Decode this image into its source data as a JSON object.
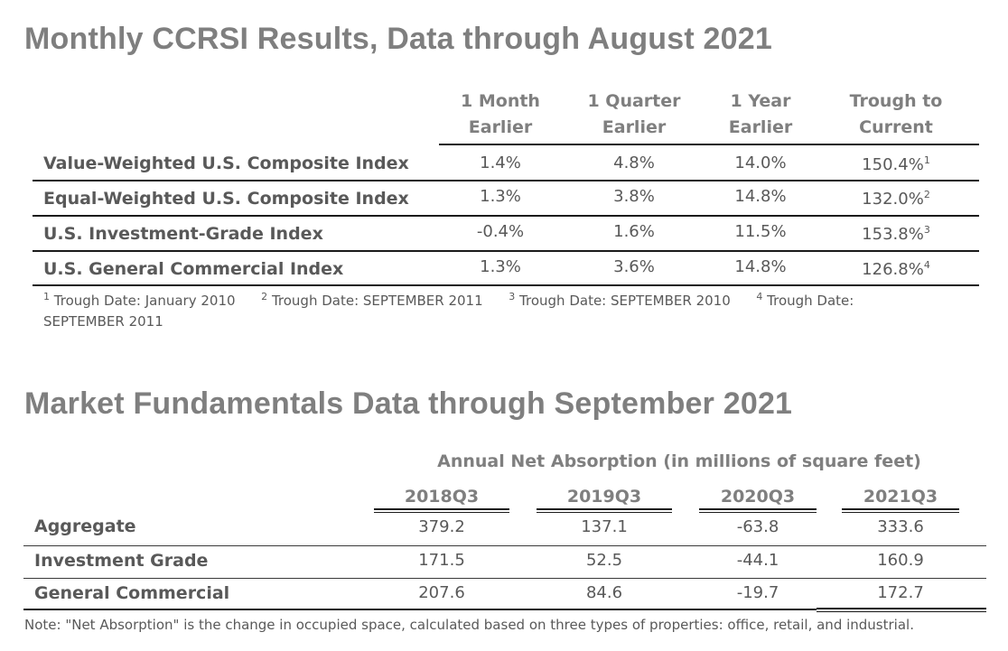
{
  "ccrsi": {
    "title": "Monthly CCRSI Results, Data through August 2021",
    "columns": [
      {
        "line1": "1 Month",
        "line2": "Earlier"
      },
      {
        "line1": "1 Quarter",
        "line2": "Earlier"
      },
      {
        "line1": "1 Year",
        "line2": "Earlier"
      },
      {
        "line1": "Trough to",
        "line2": "Current"
      }
    ],
    "rows": [
      {
        "label": "Value-Weighted U.S. Composite Index",
        "m1": "1.4%",
        "q1": "4.8%",
        "y1": "14.0%",
        "trough": "150.4%",
        "sup": "1"
      },
      {
        "label": "Equal-Weighted U.S. Composite Index",
        "m1": "1.3%",
        "q1": "3.8%",
        "y1": "14.8%",
        "trough": "132.0%",
        "sup": "2"
      },
      {
        "label": "U.S. Investment-Grade Index",
        "m1": "-0.4%",
        "q1": "1.6%",
        "y1": "11.5%",
        "trough": "153.8%",
        "sup": "3"
      },
      {
        "label": "U.S. General Commercial Index",
        "m1": "1.3%",
        "q1": "3.6%",
        "y1": "14.8%",
        "trough": "126.8%",
        "sup": "4"
      }
    ],
    "footnotes": [
      {
        "sup": "1",
        "text": "Trough Date: January 2010"
      },
      {
        "sup": "2",
        "text": "Trough Date: SEPTEMBER 2011"
      },
      {
        "sup": "3",
        "text": "Trough Date: SEPTEMBER 2010"
      },
      {
        "sup": "4",
        "text": "Trough Date:"
      }
    ],
    "footnote_wrap": "SEPTEMBER 2011"
  },
  "fundamentals": {
    "title": "Market Fundamentals Data through September 2021",
    "subtitle": "Annual Net Absorption (in millions of square feet)",
    "columns": [
      "2018Q3",
      "2019Q3",
      "2020Q3",
      "2021Q3"
    ],
    "rows": [
      {
        "label": "Aggregate",
        "values": [
          "379.2",
          "137.1",
          "-63.8",
          "333.6"
        ]
      },
      {
        "label": "Investment Grade",
        "values": [
          "171.5",
          "52.5",
          "-44.1",
          "160.9"
        ]
      },
      {
        "label": "General Commercial",
        "values": [
          "207.6",
          "84.6",
          "-19.7",
          "172.7"
        ]
      }
    ],
    "note": "Note: \"Net Absorption\" is the change in occupied space, calculated based on three types of properties: office, retail, and industrial."
  }
}
